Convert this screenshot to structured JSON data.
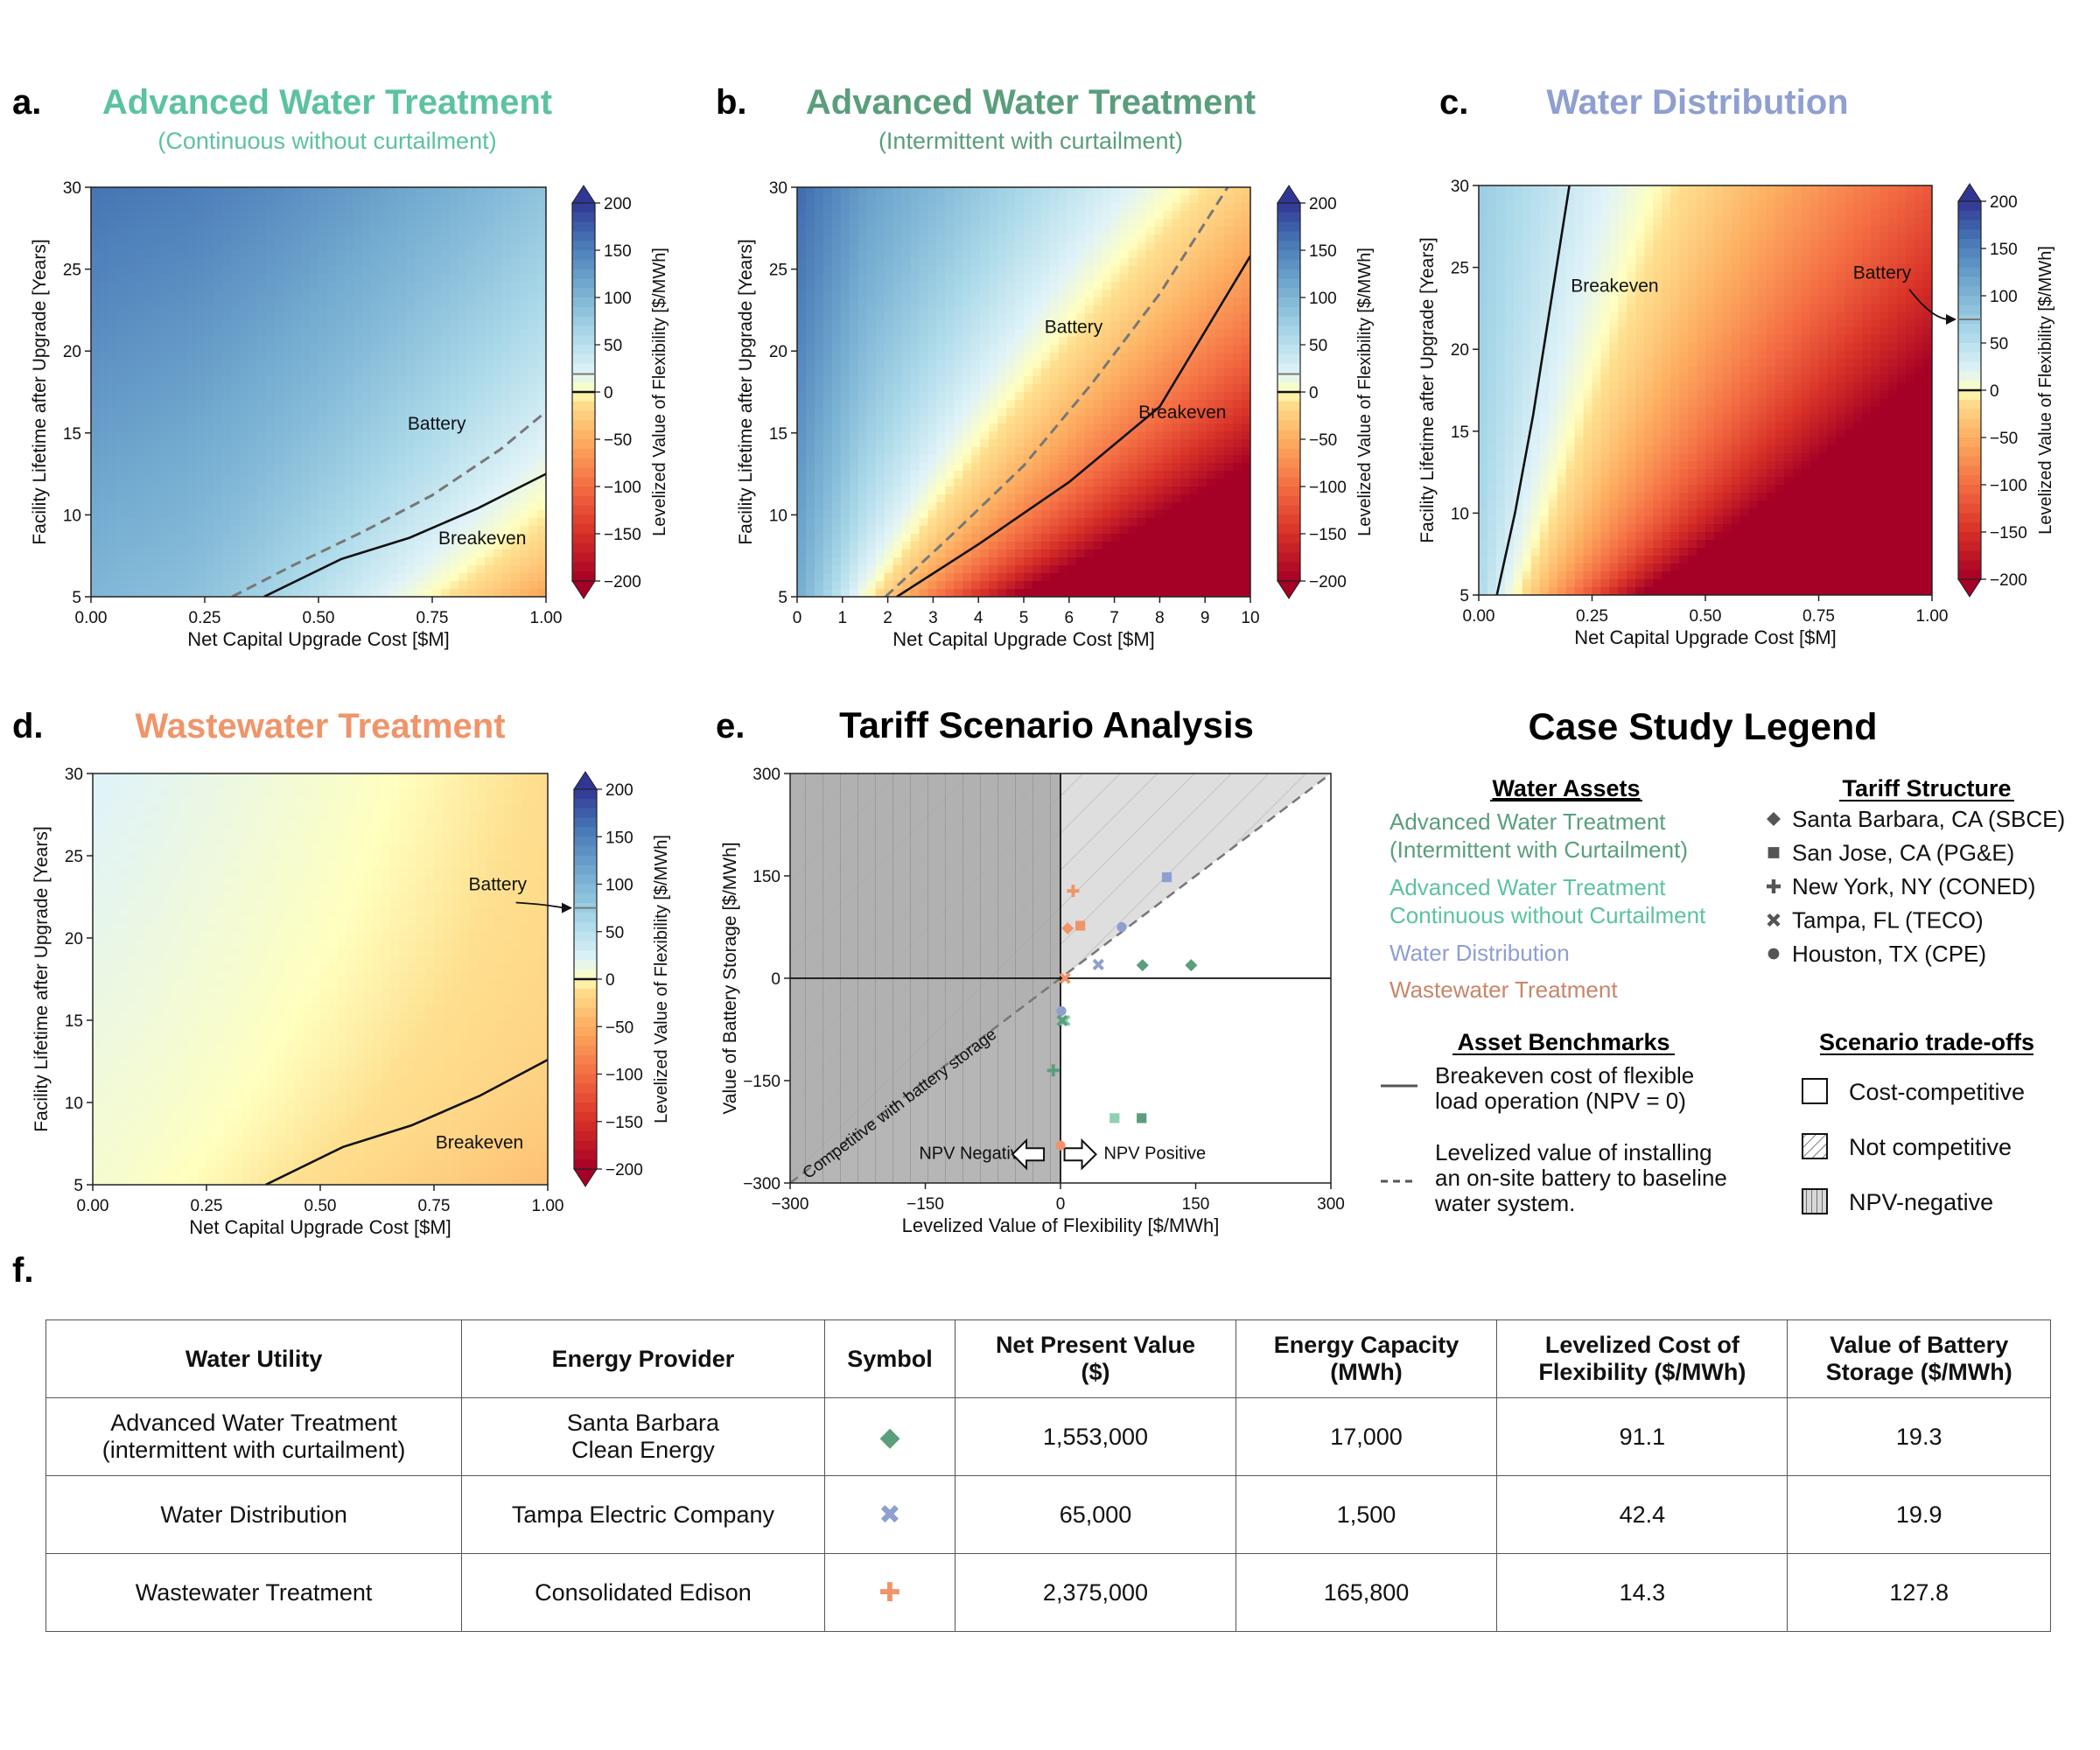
{
  "panels": {
    "a": {
      "letter": "a.",
      "title": "Advanced Water Treatment",
      "subtitle": "(Continuous without curtailment)",
      "title_color": "#5cc2a0"
    },
    "b": {
      "letter": "b.",
      "title": "Advanced Water Treatment",
      "subtitle": "(Intermittent with curtailment)",
      "title_color": "#5a9e7c"
    },
    "c": {
      "letter": "c.",
      "title": "Water Distribution",
      "subtitle": "",
      "title_color": "#8e9fd0"
    },
    "d": {
      "letter": "d.",
      "title": "Wastewater Treatment",
      "subtitle": "",
      "title_color": "#f0946a"
    },
    "e": {
      "letter": "e.",
      "title": "Tariff Scenario Analysis",
      "subtitle": "",
      "title_color": "#000000"
    },
    "f": {
      "letter": "f."
    }
  },
  "legend": {
    "title": "Case Study Legend",
    "water_assets_heading": "Water Assets",
    "water_assets": [
      {
        "line1": "Advanced Water Treatment",
        "line2": "(Intermittent with Curtailment)",
        "color": "#5a9e7c"
      },
      {
        "line1": "Advanced Water Treatment",
        "line2": "Continuous without Curtailment",
        "color": "#5cc2a0"
      },
      {
        "line1": "Water Distribution",
        "line2": "",
        "color": "#8e9fd0"
      },
      {
        "line1": "Wastewater Treatment",
        "line2": "",
        "color": "#c8866a"
      }
    ],
    "tariff_heading": "Tariff Structure",
    "tariffs": [
      {
        "label": "Santa Barbara, CA (SBCE)",
        "marker": "diamond"
      },
      {
        "label": "San Jose, CA (PG&E)",
        "marker": "square"
      },
      {
        "label": "New York, NY (CONED)",
        "marker": "plus"
      },
      {
        "label": "Tampa, FL (TECO)",
        "marker": "x"
      },
      {
        "label": "Houston, TX (CPE)",
        "marker": "circle"
      }
    ],
    "benchmarks_heading": "Asset Benchmarks",
    "benchmark_solid": [
      "Breakeven cost of flexible",
      "load operation (NPV = 0)"
    ],
    "benchmark_dashed": [
      "Levelized value of installing",
      "an on-site battery to baseline",
      "water system."
    ],
    "tradeoffs_heading": "Scenario trade-offs",
    "tradeoffs": [
      "Cost-competitive",
      "Not competitive",
      "NPV-negative"
    ]
  },
  "chart_data": [
    {
      "id": "a",
      "type": "heatmap",
      "title": "Advanced Water Treatment",
      "subtitle": "(Continuous without curtailment)",
      "xlabel": "Net Capital Upgrade Cost [$M]",
      "ylabel": "Facility Lifetime after Upgrade [Years]",
      "xlim": [
        0,
        1
      ],
      "ylim": [
        5,
        30
      ],
      "xticks": [
        "0.00",
        "0.25",
        "0.50",
        "0.75",
        "1.00"
      ],
      "yticks": [
        "5",
        "10",
        "15",
        "20",
        "25",
        "30"
      ],
      "colorbar": {
        "label": "Levelized Value of Flexibility [$/MWh]",
        "range": [
          -200,
          200
        ],
        "ticks": [
          "200",
          "150",
          "100",
          "50",
          "0",
          "−50",
          "−100",
          "−150",
          "−200"
        ]
      },
      "annotations": [
        "Battery",
        "Breakeven"
      ],
      "breakeven": [
        [
          0.38,
          5
        ],
        [
          0.55,
          7.3
        ],
        [
          0.7,
          8.6
        ],
        [
          0.85,
          10.4
        ],
        [
          1.0,
          12.5
        ]
      ],
      "battery_line": [
        [
          0.31,
          5
        ],
        [
          0.45,
          7.0
        ],
        [
          0.6,
          9.0
        ],
        [
          0.75,
          11.2
        ],
        [
          0.9,
          14.0
        ],
        [
          1.0,
          16.3
        ]
      ],
      "battery_value": 19
    },
    {
      "id": "b",
      "type": "heatmap",
      "title": "Advanced Water Treatment",
      "subtitle": "(Intermittent with curtailment)",
      "xlabel": "Net Capital Upgrade Cost [$M]",
      "ylabel": "Facility Lifetime after Upgrade [Years]",
      "xlim": [
        0,
        10
      ],
      "ylim": [
        5,
        30
      ],
      "xticks": [
        "0",
        "1",
        "2",
        "3",
        "4",
        "5",
        "6",
        "7",
        "8",
        "9",
        "10"
      ],
      "yticks": [
        "5",
        "10",
        "15",
        "20",
        "25",
        "30"
      ],
      "colorbar": {
        "label": "Levelized Value of Flexibility [$/MWh]",
        "range": [
          -200,
          200
        ],
        "ticks": [
          "200",
          "150",
          "100",
          "50",
          "0",
          "−50",
          "−100",
          "−150",
          "−200"
        ]
      },
      "annotations": [
        "Battery",
        "Breakeven"
      ],
      "breakeven": [
        [
          2.2,
          5
        ],
        [
          4,
          8.2
        ],
        [
          6,
          12.0
        ],
        [
          8,
          16.6
        ],
        [
          10,
          25.8
        ]
      ],
      "battery_line": [
        [
          1.95,
          5
        ],
        [
          3.5,
          9.0
        ],
        [
          5,
          13.0
        ],
        [
          6.5,
          18.0
        ],
        [
          8,
          23.5
        ],
        [
          9.5,
          30
        ]
      ],
      "battery_value": 19
    },
    {
      "id": "c",
      "type": "heatmap",
      "title": "Water Distribution",
      "xlabel": "Net Capital Upgrade Cost [$M]",
      "ylabel": "Facility Lifetime after Upgrade [Years]",
      "xlim": [
        0,
        1
      ],
      "ylim": [
        5,
        30
      ],
      "xticks": [
        "0.00",
        "0.25",
        "0.50",
        "0.75",
        "1.00"
      ],
      "yticks": [
        "5",
        "10",
        "15",
        "20",
        "25",
        "30"
      ],
      "colorbar": {
        "label": "Levelized Value of Flexibility [$/MWh]",
        "range": [
          -200,
          200
        ],
        "ticks": [
          "200",
          "150",
          "100",
          "50",
          "0",
          "−50",
          "−100",
          "−150",
          "−200"
        ]
      },
      "annotations": [
        "Breakeven",
        "Battery"
      ],
      "breakeven": [
        [
          0.04,
          5
        ],
        [
          0.08,
          10
        ],
        [
          0.12,
          16
        ],
        [
          0.16,
          23
        ],
        [
          0.2,
          30
        ]
      ],
      "battery_value": 75
    },
    {
      "id": "d",
      "type": "heatmap",
      "title": "Wastewater Treatment",
      "xlabel": "Net Capital Upgrade Cost [$M]",
      "ylabel": "Facility Lifetime after Upgrade [Years]",
      "xlim": [
        0,
        1
      ],
      "ylim": [
        5,
        30
      ],
      "xticks": [
        "0.00",
        "0.25",
        "0.50",
        "0.75",
        "1.00"
      ],
      "yticks": [
        "5",
        "10",
        "15",
        "20",
        "25",
        "30"
      ],
      "colorbar": {
        "label": "Levelized Value of Flexibility [$/MWh]",
        "range": [
          -200,
          200
        ],
        "ticks": [
          "200",
          "150",
          "100",
          "50",
          "0",
          "−50",
          "−100",
          "−150",
          "−200"
        ]
      },
      "annotations": [
        "Battery",
        "Breakeven"
      ],
      "breakeven": [
        [
          0.38,
          5
        ],
        [
          0.55,
          7.3
        ],
        [
          0.7,
          8.6
        ],
        [
          0.85,
          10.4
        ],
        [
          1.0,
          12.6
        ]
      ],
      "battery_value": 75
    },
    {
      "id": "e",
      "type": "scatter",
      "title": "Tariff Scenario Analysis",
      "xlabel": "Levelized Value of Flexibility [$/MWh]",
      "ylabel": "Value of Battery Storage [$/MWh]",
      "xlim": [
        -300,
        300
      ],
      "ylim": [
        -300,
        300
      ],
      "xticks": [
        "−300",
        "−150",
        "0",
        "150",
        "300"
      ],
      "yticks": [
        "−300",
        "−150",
        "0",
        "150",
        "300"
      ],
      "annotations": [
        "Competitive with battery storage",
        "NPV Negative",
        "NPV Positive"
      ],
      "points": [
        {
          "x": 91,
          "y": 19,
          "marker": "diamond",
          "color": "#5a9e7c"
        },
        {
          "x": 145,
          "y": 19,
          "marker": "diamond",
          "color": "#5a9e7c"
        },
        {
          "x": 60,
          "y": -205,
          "marker": "square",
          "color": "#8fcfb2"
        },
        {
          "x": 90,
          "y": -205,
          "marker": "square",
          "color": "#5a9e7c"
        },
        {
          "x": -8,
          "y": -135,
          "marker": "plus",
          "color": "#5a9e7c"
        },
        {
          "x": 5,
          "y": -62,
          "marker": "x",
          "color": "#8fcfb2"
        },
        {
          "x": 2,
          "y": -62,
          "marker": "x",
          "color": "#5a9e7c"
        },
        {
          "x": 1,
          "y": -48,
          "marker": "circle",
          "color": "#8e9fd0"
        },
        {
          "x": 42,
          "y": 20,
          "marker": "x",
          "color": "#8e9fd0"
        },
        {
          "x": 68,
          "y": 75,
          "marker": "circle",
          "color": "#8e9fd0"
        },
        {
          "x": 118,
          "y": 148,
          "marker": "square",
          "color": "#8e9fd0"
        },
        {
          "x": 14,
          "y": 128,
          "marker": "plus",
          "color": "#f0946a"
        },
        {
          "x": 8,
          "y": 73,
          "marker": "diamond",
          "color": "#f0946a"
        },
        {
          "x": 22,
          "y": 77,
          "marker": "square",
          "color": "#f0946a"
        },
        {
          "x": 5,
          "y": 0,
          "marker": "x",
          "color": "#f0946a"
        },
        {
          "x": 0,
          "y": -245,
          "marker": "circle",
          "color": "#f0946a"
        }
      ]
    }
  ],
  "table": {
    "headers": [
      [
        "Water Utility"
      ],
      [
        "Energy Provider"
      ],
      [
        "Symbol"
      ],
      [
        "Net Present Value",
        "($)"
      ],
      [
        "Energy Capacity",
        "(MWh)"
      ],
      [
        "Levelized Cost of",
        "Flexibility ($/MWh)"
      ],
      [
        "Value of Battery",
        "Storage ($/MWh)"
      ]
    ],
    "rows": [
      {
        "utility": [
          "Advanced Water Treatment",
          "(intermittent with curtailment)"
        ],
        "provider": [
          "Santa Barbara",
          "Clean Energy"
        ],
        "symbol": "◆",
        "symbol_color": "#5a9e7c",
        "npv": "1,553,000",
        "capacity": "17,000",
        "lcof": "91.1",
        "battery": "19.3"
      },
      {
        "utility": [
          "Water Distribution"
        ],
        "provider": [
          "Tampa Electric Company"
        ],
        "symbol": "✖",
        "symbol_color": "#8e9fd0",
        "npv": "65,000",
        "capacity": "1,500",
        "lcof": "42.4",
        "battery": "19.9"
      },
      {
        "utility": [
          "Wastewater Treatment"
        ],
        "provider": [
          "Consolidated Edison"
        ],
        "symbol": "✚",
        "symbol_color": "#f0946a",
        "npv": "2,375,000",
        "capacity": "165,800",
        "lcof": "14.3",
        "battery": "127.8"
      }
    ]
  }
}
